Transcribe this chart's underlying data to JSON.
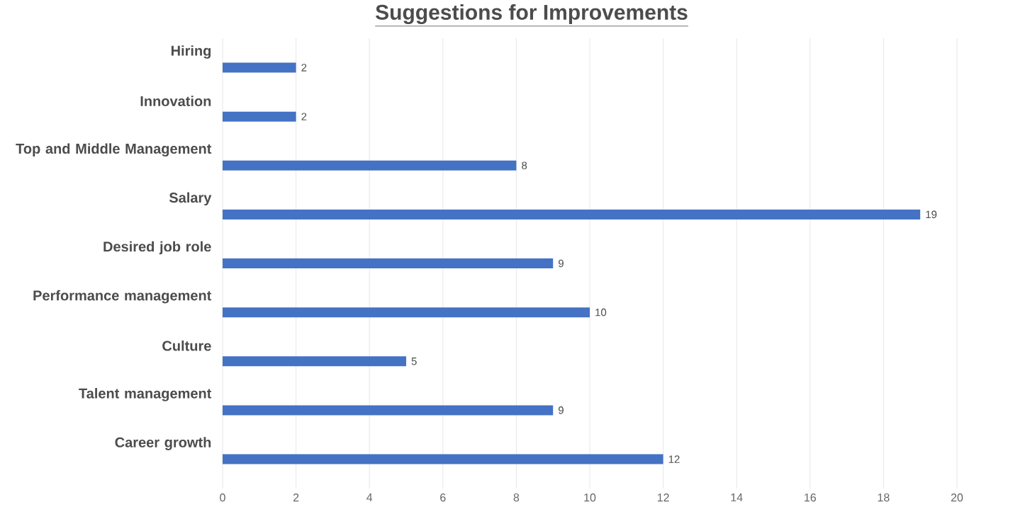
{
  "chart_data": {
    "type": "bar",
    "orientation": "horizontal",
    "title": "Suggestions for Improvements",
    "categories": [
      "Hiring",
      "Innovation",
      "Top and Middle Management",
      "Salary",
      "Desired job role",
      "Performance management",
      "Culture",
      "Talent management",
      "Career growth"
    ],
    "values": [
      2,
      2,
      8,
      19,
      9,
      10,
      5,
      9,
      12
    ],
    "color": "#4472c4",
    "xlim": [
      0,
      20
    ],
    "xticks": [
      0,
      2,
      4,
      6,
      8,
      10,
      12,
      14,
      16,
      18,
      20
    ],
    "grid": "x",
    "data_labels": true
  }
}
